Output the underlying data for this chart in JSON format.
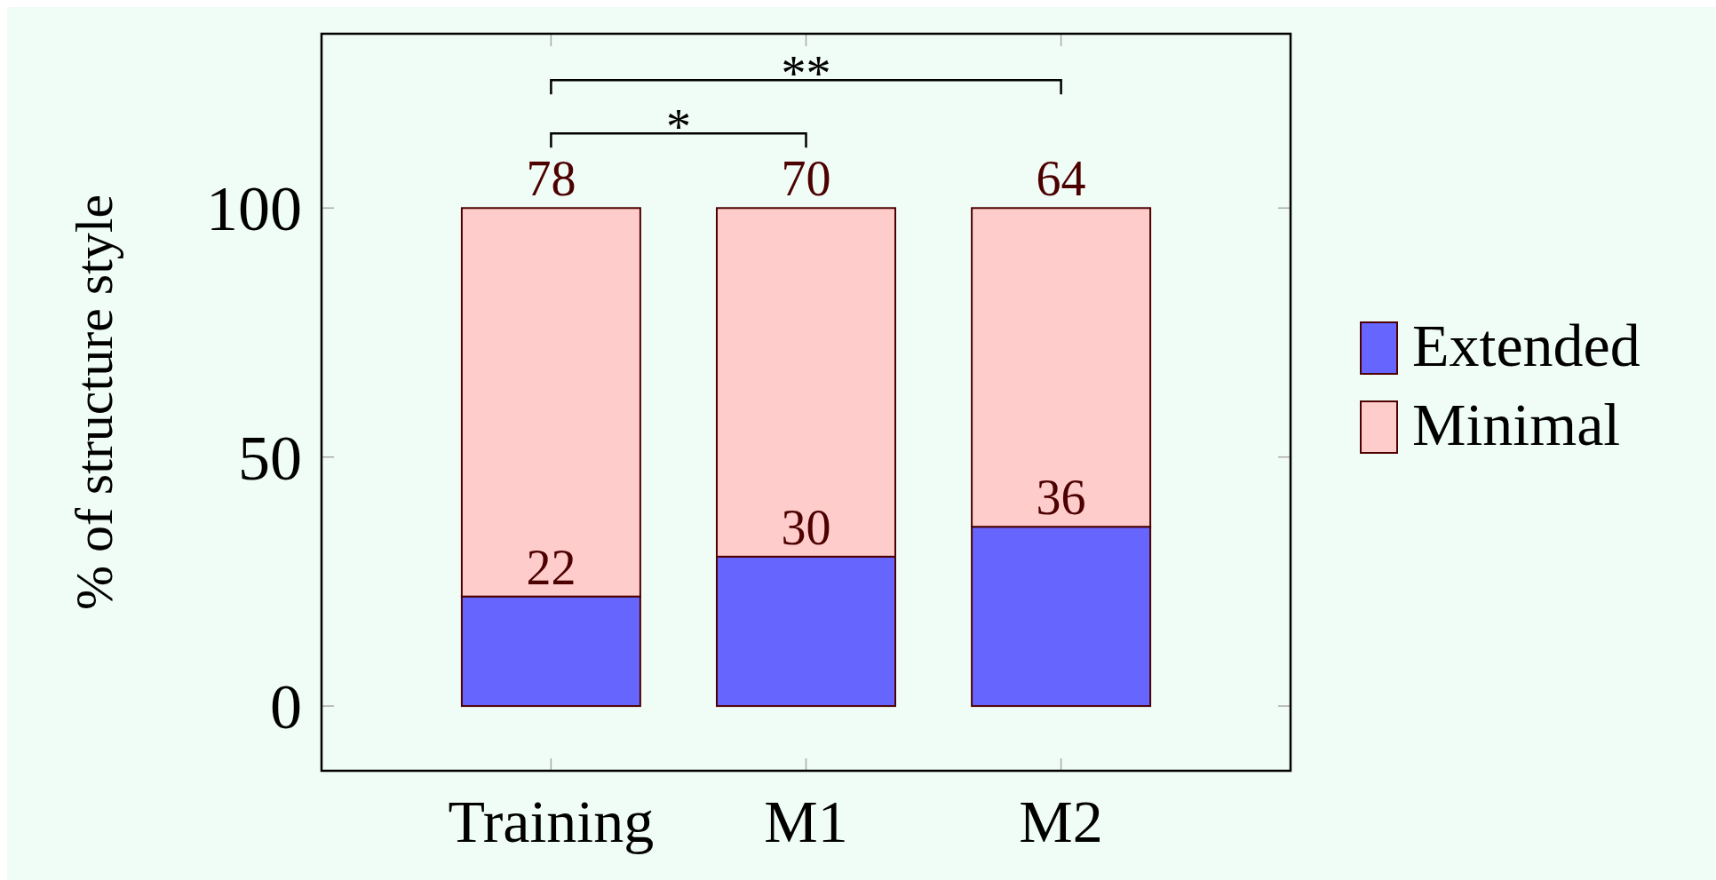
{
  "chart_data": {
    "type": "bar",
    "stacked": true,
    "ylabel": "% of structure style",
    "categories": [
      "Training",
      "M1",
      "M2"
    ],
    "series": [
      {
        "name": "Extended",
        "color": "#6666ff",
        "values": [
          22,
          30,
          36
        ]
      },
      {
        "name": "Minimal",
        "color": "#ffcccc",
        "values": [
          78,
          70,
          64
        ]
      }
    ],
    "ylim": [
      -13,
      135
    ],
    "yticks": [
      0,
      50,
      100
    ],
    "grid": false,
    "legend": "right",
    "data_labels": true,
    "annotations": [
      "*",
      "**"
    ]
  }
}
